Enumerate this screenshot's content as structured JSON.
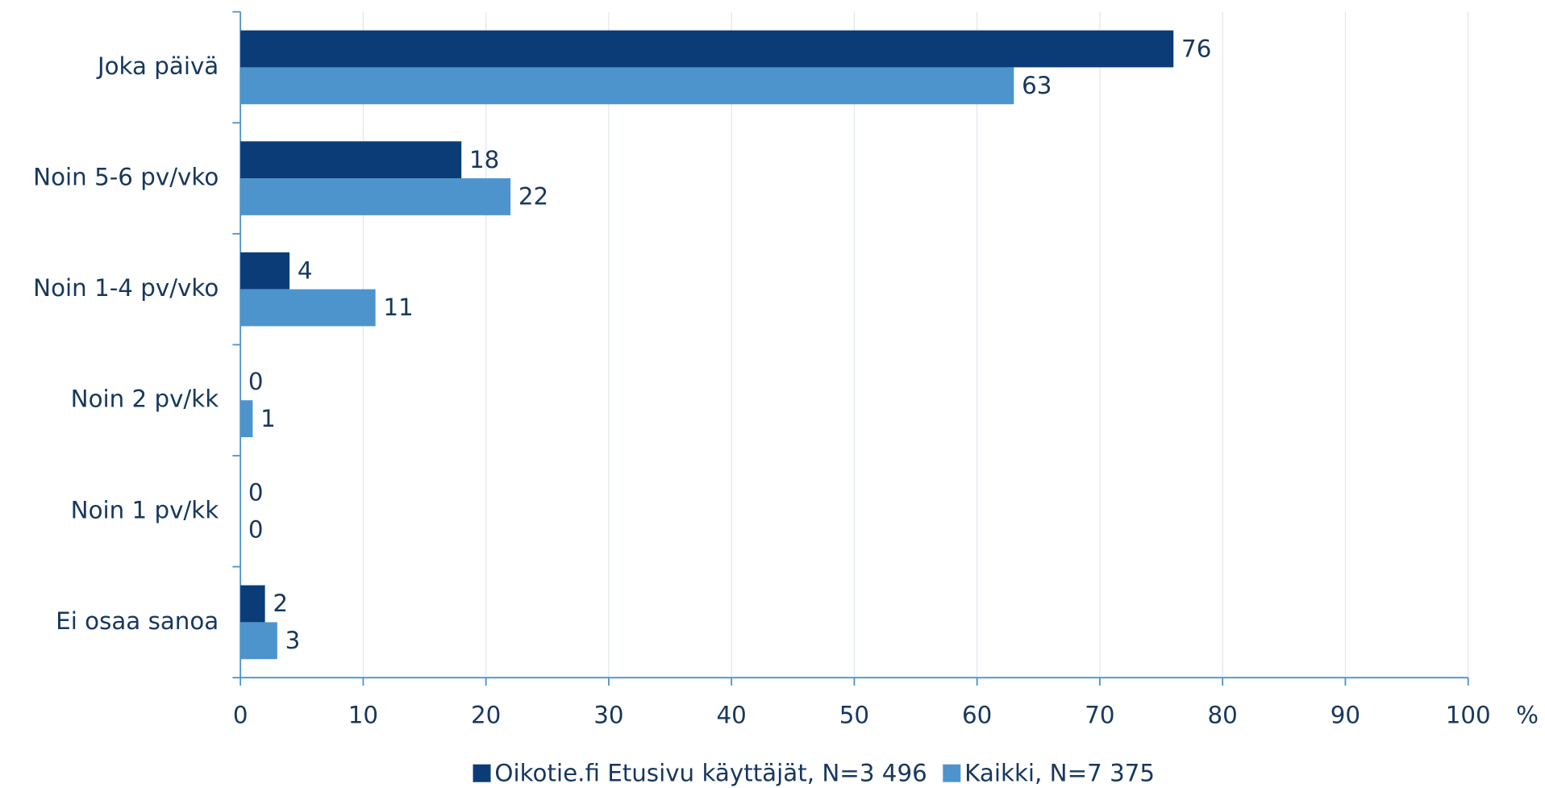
{
  "chart_data": {
    "type": "hbar",
    "categories": [
      "Joka päivä",
      "Noin 5-6 pv/vko",
      "Noin 1-4 pv/vko",
      "Noin 2 pv/kk",
      "Noin 1 pv/kk",
      "Ei osaa sanoa"
    ],
    "series": [
      {
        "name": "Oikotie.fi Etusivu käyttäjät, N=3 496",
        "color": "#0b3c78",
        "values": [
          76,
          18,
          4,
          0,
          0,
          2
        ]
      },
      {
        "name": "Kaikki, N=7 375",
        "color": "#4d94cd",
        "values": [
          63,
          22,
          11,
          1,
          0,
          3
        ]
      }
    ],
    "xlabel": "%",
    "xlim": [
      0,
      100
    ],
    "xticks": [
      0,
      10,
      20,
      30,
      40,
      50,
      60,
      70,
      80,
      90,
      100
    ],
    "grid": true,
    "legend": "bottom"
  }
}
